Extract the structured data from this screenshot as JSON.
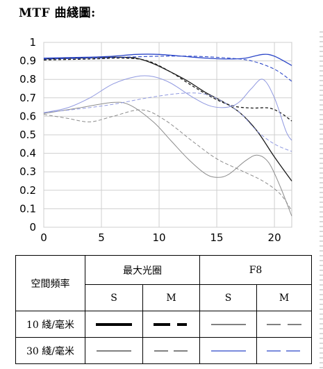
{
  "title": "MTF 曲綫圖:",
  "chart_data": {
    "type": "line",
    "xlim": [
      0,
      21.5
    ],
    "ylim": [
      0,
      1
    ],
    "x_ticks": [
      "0",
      "5",
      "10",
      "15",
      "20"
    ],
    "y_ticks": [
      "0",
      "0.1",
      "0.2",
      "0.3",
      "0.4",
      "0.5",
      "0.6",
      "0.7",
      "0.8",
      "0.9",
      "1"
    ],
    "grid": true,
    "series": [
      {
        "aperture": "最大光圈",
        "lp_mm": "10",
        "orientation": "S",
        "color": "#1a1a1a",
        "dash": "solid",
        "width": 1.3,
        "points": [
          [
            0,
            0.91
          ],
          [
            3,
            0.915
          ],
          [
            6,
            0.92
          ],
          [
            8,
            0.915
          ],
          [
            9.5,
            0.885
          ],
          [
            11,
            0.84
          ],
          [
            12.5,
            0.79
          ],
          [
            14,
            0.73
          ],
          [
            15.5,
            0.68
          ],
          [
            17,
            0.62
          ],
          [
            18.5,
            0.52
          ],
          [
            20,
            0.38
          ],
          [
            21.5,
            0.25
          ]
        ]
      },
      {
        "aperture": "最大光圈",
        "lp_mm": "10",
        "orientation": "M",
        "color": "#1a1a1a",
        "dash": "4,3",
        "width": 1.3,
        "points": [
          [
            0,
            0.905
          ],
          [
            4,
            0.91
          ],
          [
            7,
            0.915
          ],
          [
            9,
            0.9
          ],
          [
            11,
            0.84
          ],
          [
            13,
            0.76
          ],
          [
            15,
            0.69
          ],
          [
            16.5,
            0.655
          ],
          [
            18,
            0.645
          ],
          [
            19.5,
            0.645
          ],
          [
            20.5,
            0.62
          ],
          [
            21.5,
            0.575
          ]
        ]
      },
      {
        "aperture": "最大光圈",
        "lp_mm": "30",
        "orientation": "S",
        "color": "#8c8c8c",
        "dash": "solid",
        "width": 1,
        "points": [
          [
            0,
            0.615
          ],
          [
            3,
            0.645
          ],
          [
            6,
            0.675
          ],
          [
            7.5,
            0.66
          ],
          [
            9.5,
            0.57
          ],
          [
            11,
            0.47
          ],
          [
            12.5,
            0.37
          ],
          [
            14,
            0.29
          ],
          [
            15,
            0.27
          ],
          [
            16,
            0.285
          ],
          [
            17.5,
            0.36
          ],
          [
            18.5,
            0.39
          ],
          [
            19.5,
            0.35
          ],
          [
            20.5,
            0.22
          ],
          [
            21.5,
            0.06
          ]
        ]
      },
      {
        "aperture": "最大光圈",
        "lp_mm": "30",
        "orientation": "M",
        "color": "#8c8c8c",
        "dash": "5,3",
        "width": 1,
        "points": [
          [
            0,
            0.61
          ],
          [
            2,
            0.59
          ],
          [
            4,
            0.57
          ],
          [
            6,
            0.6
          ],
          [
            8.5,
            0.635
          ],
          [
            10.5,
            0.58
          ],
          [
            13,
            0.46
          ],
          [
            15,
            0.37
          ],
          [
            17,
            0.31
          ],
          [
            19,
            0.25
          ],
          [
            20.5,
            0.18
          ],
          [
            21.5,
            0.09
          ]
        ]
      },
      {
        "aperture": "F8",
        "lp_mm": "10",
        "orientation": "S",
        "color": "#2b46c8",
        "dash": "solid",
        "width": 1.3,
        "points": [
          [
            0,
            0.915
          ],
          [
            4,
            0.92
          ],
          [
            6,
            0.925
          ],
          [
            8,
            0.935
          ],
          [
            10,
            0.935
          ],
          [
            12,
            0.925
          ],
          [
            14,
            0.915
          ],
          [
            16,
            0.91
          ],
          [
            17.5,
            0.915
          ],
          [
            19,
            0.935
          ],
          [
            20,
            0.925
          ],
          [
            21.5,
            0.875
          ]
        ]
      },
      {
        "aperture": "F8",
        "lp_mm": "10",
        "orientation": "M",
        "color": "#2b46c8",
        "dash": "5,3",
        "width": 1.1,
        "points": [
          [
            0,
            0.91
          ],
          [
            4,
            0.915
          ],
          [
            7,
            0.92
          ],
          [
            10,
            0.925
          ],
          [
            13,
            0.925
          ],
          [
            16,
            0.915
          ],
          [
            18,
            0.9
          ],
          [
            20,
            0.855
          ],
          [
            21.5,
            0.79
          ]
        ]
      },
      {
        "aperture": "F8",
        "lp_mm": "30",
        "orientation": "S",
        "color": "#8f98e0",
        "dash": "solid",
        "width": 1,
        "points": [
          [
            0,
            0.62
          ],
          [
            2,
            0.645
          ],
          [
            4,
            0.7
          ],
          [
            6,
            0.775
          ],
          [
            8,
            0.815
          ],
          [
            9.5,
            0.815
          ],
          [
            11,
            0.78
          ],
          [
            13,
            0.7
          ],
          [
            14.5,
            0.655
          ],
          [
            16,
            0.65
          ],
          [
            17,
            0.68
          ],
          [
            18,
            0.75
          ],
          [
            19,
            0.8
          ],
          [
            20,
            0.7
          ],
          [
            21,
            0.52
          ],
          [
            21.5,
            0.47
          ]
        ]
      },
      {
        "aperture": "F8",
        "lp_mm": "30",
        "orientation": "M",
        "color": "#8f98e0",
        "dash": "5,3",
        "width": 1,
        "points": [
          [
            0,
            0.62
          ],
          [
            3,
            0.64
          ],
          [
            6,
            0.665
          ],
          [
            9,
            0.7
          ],
          [
            12,
            0.725
          ],
          [
            14,
            0.72
          ],
          [
            15.5,
            0.68
          ],
          [
            17,
            0.62
          ],
          [
            18.5,
            0.52
          ],
          [
            20,
            0.45
          ],
          [
            21.5,
            0.41
          ]
        ]
      }
    ]
  },
  "legend": {
    "header_label": "空間頻率",
    "group_max": "最大光圈",
    "group_f8": "F8",
    "sub_s1": "S",
    "sub_m1": "M",
    "sub_s2": "S",
    "sub_m2": "M",
    "row10_label": "10 綫/毫米",
    "row30_label": "30 綫/毫米"
  }
}
